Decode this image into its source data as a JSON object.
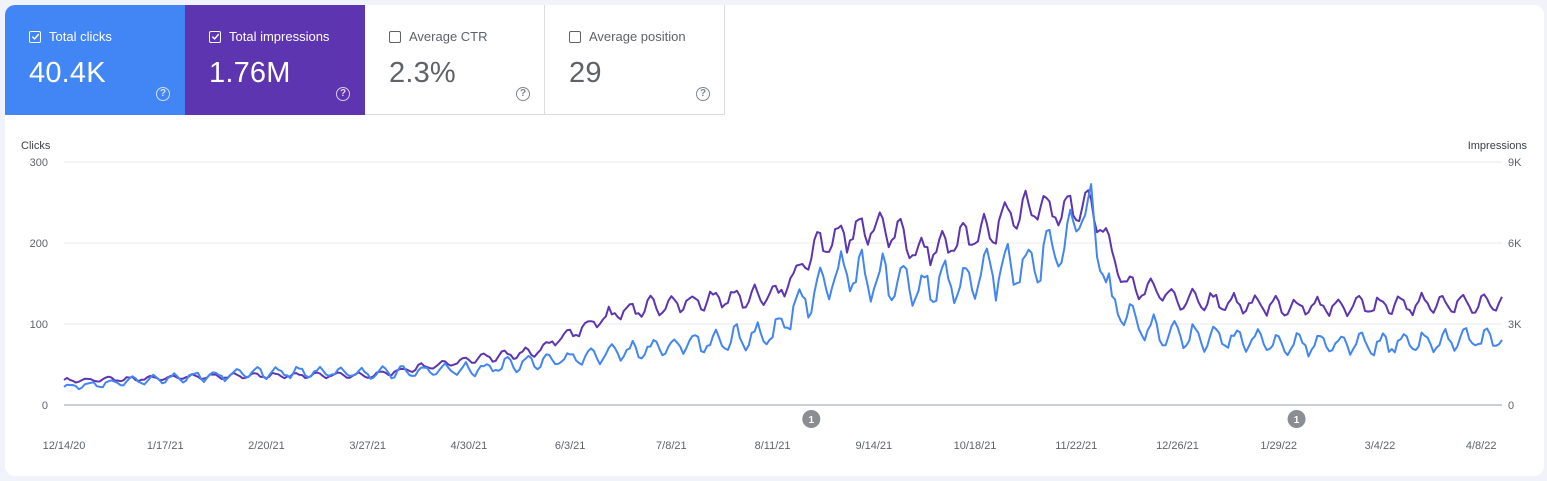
{
  "metrics": [
    {
      "id": "clicks",
      "label": "Total clicks",
      "value": "40.4K",
      "checked": true,
      "color": "#4285f4"
    },
    {
      "id": "impressions",
      "label": "Total impressions",
      "value": "1.76M",
      "checked": true,
      "color": "#5e35b1"
    },
    {
      "id": "ctr",
      "label": "Average CTR",
      "value": "2.3%",
      "checked": false
    },
    {
      "id": "position",
      "label": "Average position",
      "value": "29",
      "checked": false
    }
  ],
  "help_glyph": "?",
  "chart_data": {
    "type": "line",
    "left_axis": {
      "title": "Clicks",
      "ticks": [
        "0",
        "100",
        "200",
        "300"
      ],
      "range": [
        0,
        300
      ]
    },
    "right_axis": {
      "title": "Impressions",
      "ticks": [
        "0",
        "3K",
        "6K",
        "9K"
      ],
      "range": [
        0,
        9000
      ]
    },
    "x_ticks": [
      "12/14/20",
      "1/17/21",
      "2/20/21",
      "3/27/21",
      "4/30/21",
      "6/3/21",
      "7/8/21",
      "8/11/21",
      "9/14/21",
      "10/18/21",
      "11/22/21",
      "12/26/21",
      "1/29/22",
      "3/4/22",
      "4/8/22"
    ],
    "x_range": [
      "2020-12-14",
      "2022-04-11"
    ],
    "annotations": [
      {
        "date": "2021-08-22",
        "label": "1"
      },
      {
        "date": "2022-02-01",
        "label": "1"
      }
    ],
    "grid": true,
    "series": [
      {
        "name": "Clicks",
        "axis": "left",
        "color": "#4285f4",
        "keypoints": [
          [
            "2020-12-14",
            22
          ],
          [
            "2021-01-17",
            33
          ],
          [
            "2021-02-20",
            40
          ],
          [
            "2021-03-27",
            40
          ],
          [
            "2021-04-30",
            44
          ],
          [
            "2021-06-03",
            58
          ],
          [
            "2021-07-08",
            72
          ],
          [
            "2021-08-11",
            90
          ],
          [
            "2021-08-20",
            135
          ],
          [
            "2021-09-03",
            165
          ],
          [
            "2021-09-14",
            155
          ],
          [
            "2021-09-28",
            145
          ],
          [
            "2021-10-18",
            160
          ],
          [
            "2021-11-01",
            170
          ],
          [
            "2021-11-15",
            205
          ],
          [
            "2021-11-22",
            250
          ],
          [
            "2021-11-27",
            200
          ],
          [
            "2021-12-01",
            120
          ],
          [
            "2021-12-12",
            95
          ],
          [
            "2021-12-26",
            85
          ],
          [
            "2022-01-29",
            75
          ],
          [
            "2022-03-04",
            75
          ],
          [
            "2022-04-08",
            82
          ],
          [
            "2022-04-11",
            85
          ]
        ]
      },
      {
        "name": "Impressions",
        "axis": "right",
        "color": "#5e35b1",
        "keypoints": [
          [
            "2020-12-14",
            900
          ],
          [
            "2021-01-17",
            1000
          ],
          [
            "2021-02-20",
            1100
          ],
          [
            "2021-03-27",
            1100
          ],
          [
            "2021-04-30",
            1700
          ],
          [
            "2021-05-20",
            1950
          ],
          [
            "2021-06-03",
            2700
          ],
          [
            "2021-06-20",
            3500
          ],
          [
            "2021-07-08",
            3800
          ],
          [
            "2021-08-11",
            4100
          ],
          [
            "2021-08-25",
            6000
          ],
          [
            "2021-09-14",
            6700
          ],
          [
            "2021-09-28",
            5700
          ],
          [
            "2021-10-18",
            6300
          ],
          [
            "2021-11-01",
            7300
          ],
          [
            "2021-11-15",
            7200
          ],
          [
            "2021-11-22",
            7600
          ],
          [
            "2021-11-26",
            7000
          ],
          [
            "2021-12-05",
            4500
          ],
          [
            "2021-12-26",
            3900
          ],
          [
            "2022-01-29",
            3600
          ],
          [
            "2022-03-04",
            3700
          ],
          [
            "2022-04-08",
            3800
          ],
          [
            "2022-04-11",
            3750
          ]
        ]
      }
    ]
  }
}
